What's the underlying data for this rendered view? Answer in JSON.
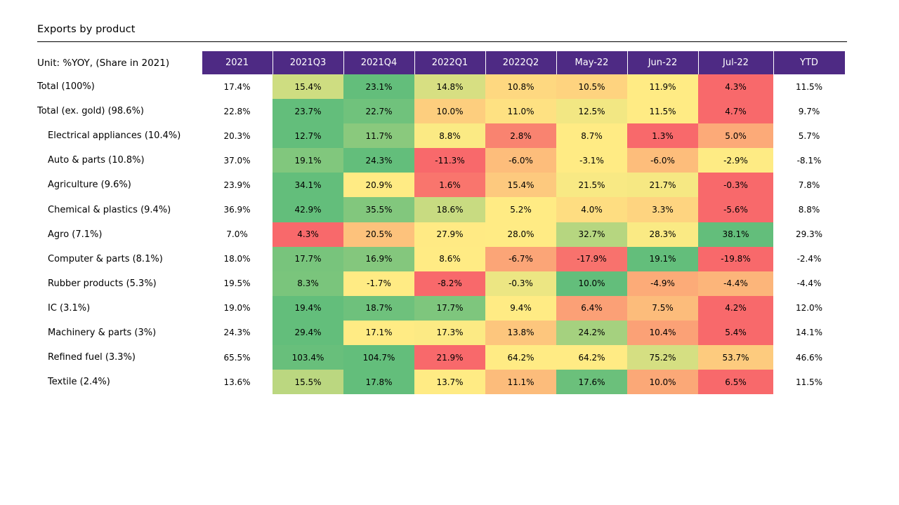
{
  "title": "Exports by product",
  "chart_data": {
    "type": "table",
    "title": "Exports by product",
    "unit_label": "Unit: %YOY, (Share in 2021)",
    "columns": [
      "2021",
      "2021Q3",
      "2021Q4",
      "2022Q1",
      "2022Q2",
      "May-22",
      "Jun-22",
      "Jul-22",
      "YTD"
    ],
    "heatmap_columns": [
      "2021Q3",
      "2021Q4",
      "2022Q1",
      "2022Q2",
      "May-22",
      "Jun-22",
      "Jul-22"
    ],
    "color_scale": {
      "low": "#f8696b",
      "mid": "#ffeb84",
      "high": "#63be7b"
    },
    "rows": [
      {
        "label": "Total (100%)",
        "indent": false,
        "values": [
          "17.4%",
          "15.4%",
          "23.1%",
          "14.8%",
          "10.8%",
          "10.5%",
          "11.9%",
          "4.3%",
          "11.5%"
        ]
      },
      {
        "label": "Total (ex. gold) (98.6%)",
        "indent": false,
        "values": [
          "22.8%",
          "23.7%",
          "22.7%",
          "10.0%",
          "11.0%",
          "12.5%",
          "11.5%",
          "4.7%",
          "9.7%"
        ]
      },
      {
        "label": "Electrical appliances  (10.4%)",
        "indent": true,
        "values": [
          "20.3%",
          "12.7%",
          "11.7%",
          "8.8%",
          "2.8%",
          "8.7%",
          "1.3%",
          "5.0%",
          "5.7%"
        ]
      },
      {
        "label": "Auto & parts  (10.8%)",
        "indent": true,
        "values": [
          "37.0%",
          "19.1%",
          "24.3%",
          "-11.3%",
          "-6.0%",
          "-3.1%",
          "-6.0%",
          "-2.9%",
          "-8.1%"
        ]
      },
      {
        "label": "Agriculture   (9.6%)",
        "indent": true,
        "values": [
          "23.9%",
          "34.1%",
          "20.9%",
          "1.6%",
          "15.4%",
          "21.5%",
          "21.7%",
          "-0.3%",
          "7.8%"
        ]
      },
      {
        "label": "Chemical & plastics  (9.4%)",
        "indent": true,
        "values": [
          "36.9%",
          "42.9%",
          "35.5%",
          "18.6%",
          "5.2%",
          "4.0%",
          "3.3%",
          "-5.6%",
          "8.8%"
        ]
      },
      {
        "label": "Agro  (7.1%)",
        "indent": true,
        "values": [
          "7.0%",
          "4.3%",
          "20.5%",
          "27.9%",
          "28.0%",
          "32.7%",
          "28.3%",
          "38.1%",
          "29.3%"
        ]
      },
      {
        "label": "Computer & parts  (8.1%)",
        "indent": true,
        "values": [
          "18.0%",
          "17.7%",
          "16.9%",
          "8.6%",
          "-6.7%",
          "-17.9%",
          "19.1%",
          "-19.8%",
          "-2.4%"
        ]
      },
      {
        "label": "Rubber products   (5.3%)",
        "indent": true,
        "values": [
          "19.5%",
          "8.3%",
          "-1.7%",
          "-8.2%",
          "-0.3%",
          "10.0%",
          "-4.9%",
          "-4.4%",
          "-4.4%"
        ]
      },
      {
        "label": "IC  (3.1%)",
        "indent": true,
        "values": [
          "19.0%",
          "19.4%",
          "18.7%",
          "17.7%",
          "9.4%",
          "6.4%",
          "7.5%",
          "4.2%",
          "12.0%"
        ]
      },
      {
        "label": "Machinery & parts  (3%)",
        "indent": true,
        "values": [
          "24.3%",
          "29.4%",
          "17.1%",
          "17.3%",
          "13.8%",
          "24.2%",
          "10.4%",
          "5.4%",
          "14.1%"
        ]
      },
      {
        "label": "Refined fuel  (3.3%)",
        "indent": true,
        "values": [
          "65.5%",
          "103.4%",
          "104.7%",
          "21.9%",
          "64.2%",
          "64.2%",
          "75.2%",
          "53.7%",
          "46.6%"
        ]
      },
      {
        "label": "Textile   (2.4%)",
        "indent": true,
        "values": [
          "13.6%",
          "15.5%",
          "17.8%",
          "13.7%",
          "11.1%",
          "17.6%",
          "10.0%",
          "6.5%",
          "11.5%"
        ]
      }
    ]
  }
}
